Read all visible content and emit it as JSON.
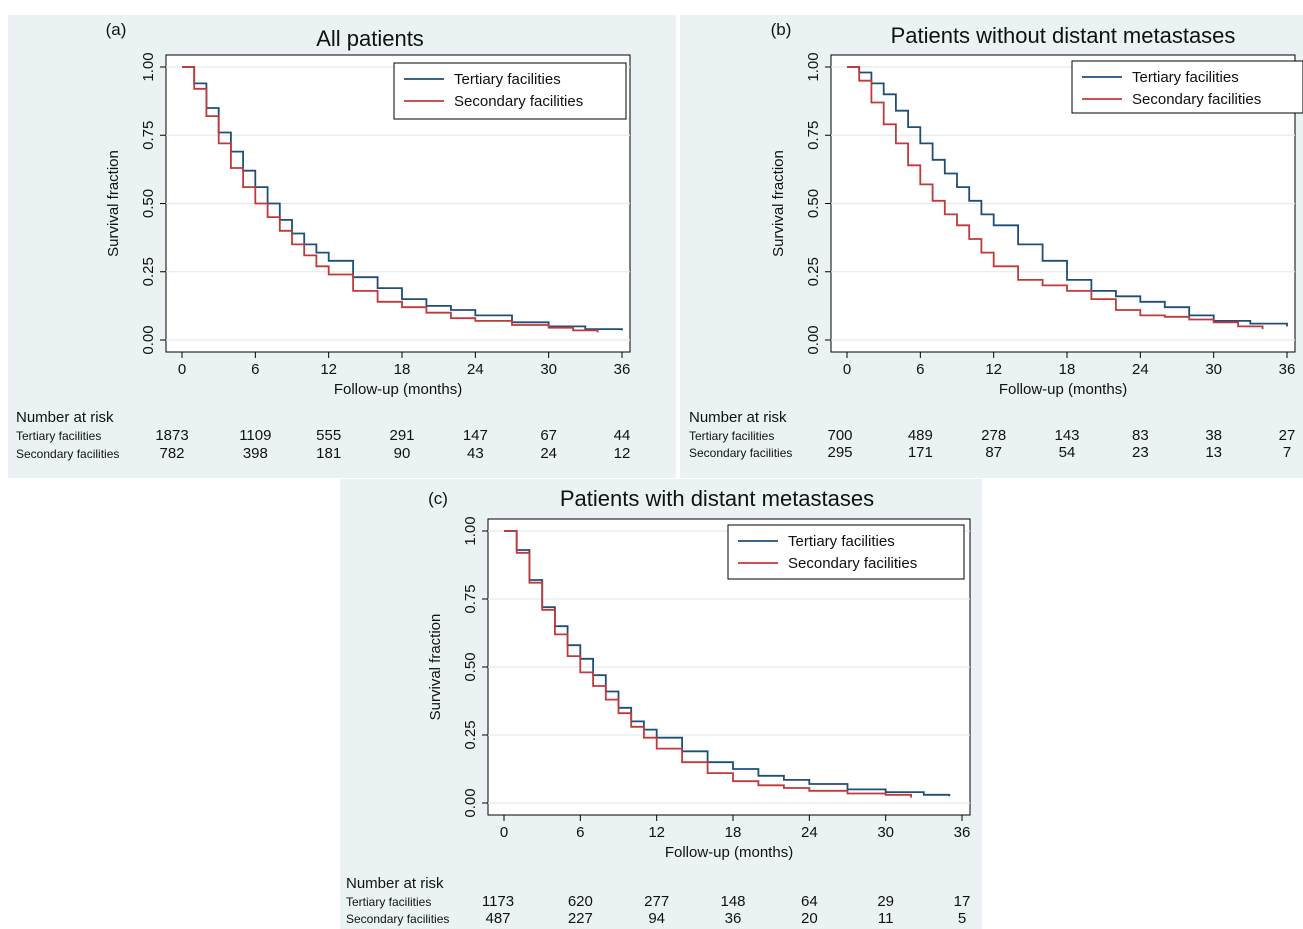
{
  "colors": {
    "panel_bg": "#eaf2f3",
    "plot_bg": "#ffffff",
    "grid": "#e2ecec",
    "tertiary": "#1f4e79",
    "secondary": "#c0393b"
  },
  "chart_data": [
    {
      "panel_label": "(a)",
      "type": "line",
      "step": true,
      "title": "All patients",
      "xlabel": "Follow-up (months)",
      "ylabel": "Survival fraction",
      "xlim": [
        0,
        36
      ],
      "ylim": [
        0,
        1
      ],
      "xticks": [
        0,
        6,
        12,
        18,
        24,
        30,
        36
      ],
      "yticks": [
        0,
        0.25,
        0.5,
        0.75,
        1
      ],
      "ytick_labels": [
        "0.00",
        "0.25",
        "0.50",
        "0.75",
        "1.00"
      ],
      "grid": true,
      "legend": "top-right",
      "series": [
        {
          "name": "Tertiary facilities",
          "color": "tertiary",
          "x": [
            0,
            1,
            2,
            3,
            4,
            5,
            6,
            7,
            8,
            9,
            10,
            11,
            12,
            14,
            16,
            18,
            20,
            22,
            24,
            27,
            30,
            33,
            36
          ],
          "y": [
            1.0,
            0.94,
            0.85,
            0.76,
            0.69,
            0.62,
            0.56,
            0.5,
            0.44,
            0.39,
            0.35,
            0.32,
            0.29,
            0.23,
            0.19,
            0.15,
            0.125,
            0.11,
            0.09,
            0.065,
            0.05,
            0.04,
            0.035
          ]
        },
        {
          "name": "Secondary facilities",
          "color": "secondary",
          "x": [
            0,
            1,
            2,
            3,
            4,
            5,
            6,
            7,
            8,
            9,
            10,
            11,
            12,
            14,
            16,
            18,
            20,
            22,
            24,
            27,
            30,
            32,
            34
          ],
          "y": [
            1.0,
            0.92,
            0.82,
            0.72,
            0.63,
            0.56,
            0.5,
            0.45,
            0.4,
            0.35,
            0.31,
            0.27,
            0.24,
            0.18,
            0.14,
            0.12,
            0.1,
            0.08,
            0.07,
            0.055,
            0.045,
            0.035,
            0.028
          ]
        }
      ],
      "risk_table": {
        "title": "Number at risk",
        "rows": [
          {
            "label": "Tertiary facilities",
            "values": [
              "1873",
              "1109",
              "555",
              "291",
              "147",
              "67",
              "44"
            ]
          },
          {
            "label": "Secondary facilities",
            "values": [
              "782",
              "398",
              "181",
              "90",
              "43",
              "24",
              "12"
            ]
          }
        ]
      }
    },
    {
      "panel_label": "(b)",
      "type": "line",
      "step": true,
      "title": "Patients without distant metastases",
      "xlabel": "Follow-up (months)",
      "ylabel": "Survival fraction",
      "xlim": [
        0,
        36
      ],
      "ylim": [
        0,
        1
      ],
      "xticks": [
        0,
        6,
        12,
        18,
        24,
        30,
        36
      ],
      "xtick_labels": [
        "0",
        "6",
        "12",
        "18",
        "24",
        "30",
        "36"
      ],
      "yticks": [
        0,
        0.25,
        0.5,
        0.75,
        1
      ],
      "ytick_labels": [
        "0.00",
        "0.25",
        "0.50",
        "0.75",
        "1.00"
      ],
      "grid": true,
      "legend": "top-right",
      "series": [
        {
          "name": "Tertiary facilities",
          "color": "tertiary",
          "x": [
            0,
            1,
            2,
            3,
            4,
            5,
            6,
            7,
            8,
            9,
            10,
            11,
            12,
            14,
            16,
            18,
            20,
            22,
            24,
            26,
            28,
            30,
            33,
            36
          ],
          "y": [
            1.0,
            0.98,
            0.94,
            0.9,
            0.84,
            0.78,
            0.72,
            0.66,
            0.61,
            0.56,
            0.51,
            0.46,
            0.42,
            0.35,
            0.29,
            0.22,
            0.18,
            0.16,
            0.14,
            0.12,
            0.09,
            0.07,
            0.06,
            0.05
          ]
        },
        {
          "name": "Secondary facilities",
          "color": "secondary",
          "x": [
            0,
            1,
            2,
            3,
            4,
            5,
            6,
            7,
            8,
            9,
            10,
            11,
            12,
            14,
            16,
            18,
            20,
            22,
            24,
            26,
            28,
            30,
            32,
            34
          ],
          "y": [
            1.0,
            0.95,
            0.87,
            0.79,
            0.72,
            0.64,
            0.57,
            0.51,
            0.46,
            0.42,
            0.37,
            0.32,
            0.27,
            0.22,
            0.2,
            0.18,
            0.15,
            0.11,
            0.09,
            0.085,
            0.075,
            0.065,
            0.05,
            0.04
          ]
        }
      ],
      "risk_table": {
        "title": "Number at risk",
        "rows": [
          {
            "label": "Tertiary facilities",
            "values": [
              "700",
              "489",
              "278",
              "143",
              "83",
              "38",
              "27"
            ]
          },
          {
            "label": "Secondary facilities",
            "values": [
              "295",
              "171",
              "87",
              "54",
              "23",
              "13",
              "7"
            ]
          }
        ]
      }
    },
    {
      "panel_label": "(c)",
      "type": "line",
      "step": true,
      "title": "Patients with distant metastases",
      "xlabel": "Follow-up (months)",
      "ylabel": "Survival fraction",
      "xlim": [
        0,
        36
      ],
      "ylim": [
        0,
        1
      ],
      "xticks": [
        0,
        6,
        12,
        18,
        24,
        30,
        36
      ],
      "yticks": [
        0,
        0.25,
        0.5,
        0.75,
        1
      ],
      "ytick_labels": [
        "0.00",
        "0.25",
        "0.50",
        "0.75",
        "1.00"
      ],
      "grid": true,
      "legend": "top-right",
      "series": [
        {
          "name": "Tertiary facilities",
          "color": "tertiary",
          "x": [
            0,
            1,
            2,
            3,
            4,
            5,
            6,
            7,
            8,
            9,
            10,
            11,
            12,
            14,
            16,
            18,
            20,
            22,
            24,
            27,
            30,
            33,
            35
          ],
          "y": [
            1.0,
            0.93,
            0.82,
            0.72,
            0.65,
            0.58,
            0.53,
            0.47,
            0.41,
            0.35,
            0.3,
            0.27,
            0.24,
            0.19,
            0.15,
            0.125,
            0.1,
            0.085,
            0.07,
            0.05,
            0.04,
            0.03,
            0.025
          ]
        },
        {
          "name": "Secondary facilities",
          "color": "secondary",
          "x": [
            0,
            1,
            2,
            3,
            4,
            5,
            6,
            7,
            8,
            9,
            10,
            11,
            12,
            14,
            16,
            18,
            20,
            22,
            24,
            27,
            30,
            32
          ],
          "y": [
            1.0,
            0.92,
            0.81,
            0.71,
            0.62,
            0.54,
            0.48,
            0.43,
            0.38,
            0.33,
            0.28,
            0.24,
            0.2,
            0.15,
            0.11,
            0.08,
            0.065,
            0.055,
            0.045,
            0.035,
            0.03,
            0.02
          ]
        }
      ],
      "risk_table": {
        "title": "Number at risk",
        "rows": [
          {
            "label": "Tertiary facilities",
            "values": [
              "1173",
              "620",
              "277",
              "148",
              "64",
              "29",
              "17"
            ]
          },
          {
            "label": "Secondary facilities",
            "values": [
              "487",
              "227",
              "94",
              "36",
              "20",
              "11",
              "5"
            ]
          }
        ]
      }
    }
  ]
}
